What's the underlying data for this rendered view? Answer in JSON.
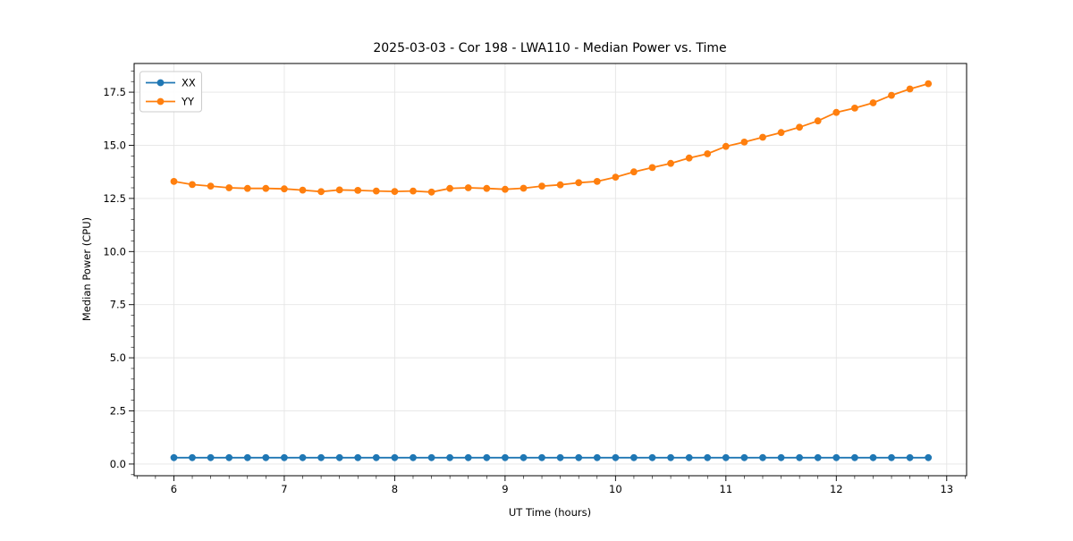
{
  "figure": {
    "background": "#ffffff"
  },
  "chart_data": {
    "type": "line",
    "title": "2025-03-03 - Cor 198 - LWA110 - Median Power vs. Time",
    "xlabel": "UT Time (hours)",
    "ylabel": "Median Power (CPU)",
    "xlim": [
      5.64,
      13.18
    ],
    "ylim": [
      -0.55,
      18.85
    ],
    "grid": true,
    "grid_color": "#e5e5e5",
    "spine_color": "#000000",
    "legend_position": "upper left",
    "x_major_ticks": [
      6,
      7,
      8,
      9,
      10,
      11,
      12,
      13
    ],
    "x_tick_labels": [
      "6",
      "7",
      "8",
      "9",
      "10",
      "11",
      "12",
      "13"
    ],
    "x_minor_step": 0.166667,
    "y_major_ticks": [
      0,
      2.5,
      5,
      7.5,
      10,
      12.5,
      15,
      17.5
    ],
    "y_tick_labels": [
      "0.0",
      "2.5",
      "5.0",
      "7.5",
      "10.0",
      "12.5",
      "15.0",
      "17.5"
    ],
    "y_minor_step": 0.5,
    "x": [
      6.0,
      6.1667,
      6.3333,
      6.5,
      6.6667,
      6.8333,
      7.0,
      7.1667,
      7.3333,
      7.5,
      7.6667,
      7.8333,
      8.0,
      8.1667,
      8.3333,
      8.5,
      8.6667,
      8.8333,
      9.0,
      9.1667,
      9.3333,
      9.5,
      9.6667,
      9.8333,
      10.0,
      10.1667,
      10.3333,
      10.5,
      10.6667,
      10.8333,
      11.0,
      11.1667,
      11.3333,
      11.5,
      11.6667,
      11.8333,
      12.0,
      12.1667,
      12.3333,
      12.5,
      12.6667,
      12.8333
    ],
    "series": [
      {
        "name": "XX",
        "color": "#1f77b4",
        "marker": "circle",
        "values": [
          0.3,
          0.3,
          0.3,
          0.3,
          0.3,
          0.3,
          0.3,
          0.3,
          0.3,
          0.3,
          0.3,
          0.3,
          0.3,
          0.3,
          0.3,
          0.3,
          0.3,
          0.3,
          0.3,
          0.3,
          0.3,
          0.3,
          0.3,
          0.3,
          0.3,
          0.3,
          0.3,
          0.3,
          0.3,
          0.3,
          0.3,
          0.3,
          0.3,
          0.3,
          0.3,
          0.3,
          0.3,
          0.3,
          0.3,
          0.3,
          0.3,
          0.3
        ]
      },
      {
        "name": "YY",
        "color": "#ff7f0e",
        "marker": "circle",
        "values": [
          13.3,
          13.15,
          13.08,
          13.0,
          12.97,
          12.97,
          12.95,
          12.89,
          12.82,
          12.9,
          12.88,
          12.85,
          12.83,
          12.85,
          12.8,
          12.97,
          13.0,
          12.97,
          12.93,
          12.98,
          13.08,
          13.14,
          13.24,
          13.3,
          13.5,
          13.75,
          13.95,
          14.15,
          14.4,
          14.6,
          14.95,
          15.15,
          15.38,
          15.6,
          15.85,
          16.15,
          16.55,
          16.75,
          17.0,
          17.35,
          17.65,
          17.9
        ]
      }
    ]
  }
}
